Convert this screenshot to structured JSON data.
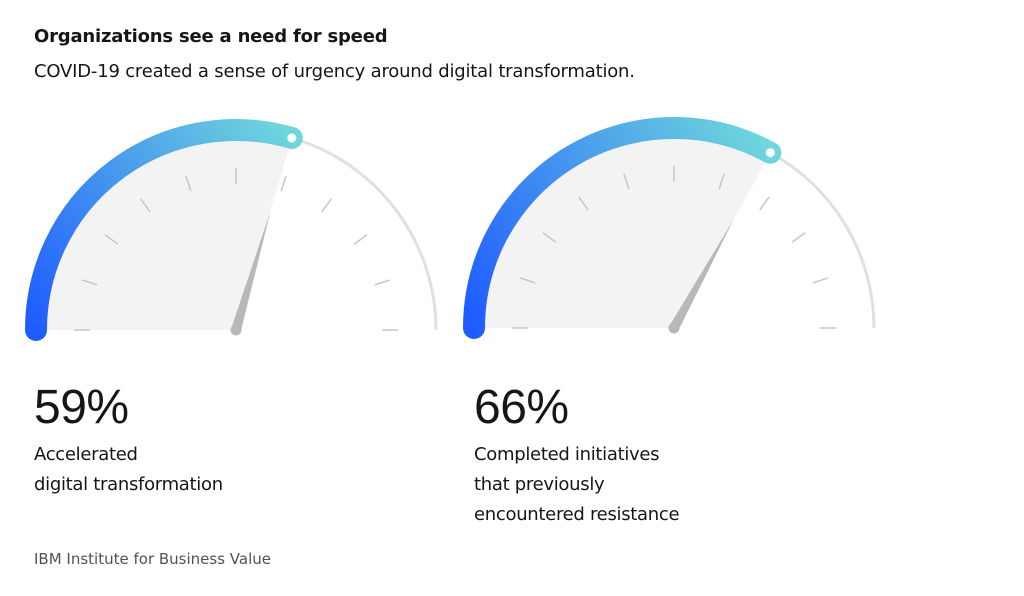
{
  "title": "Organizations see a need for speed",
  "subtitle": "COVID-19 created a sense of urgency around digital transformation.",
  "source": "IBM Institute for Business Value",
  "colors": {
    "gradient_start": "#1F5CFF",
    "gradient_end": "#6FD6DC",
    "track": "#E0E0E0",
    "fill": "#F3F3F3",
    "tick": "#C6C6C6",
    "needle": "#B8B8B8"
  },
  "chart_data": [
    {
      "type": "gauge",
      "value": 59,
      "unit": "%",
      "value_label": "59%",
      "range": [
        0,
        100
      ],
      "label_lines": [
        "Accelerated",
        "digital transformation"
      ]
    },
    {
      "type": "gauge",
      "value": 66,
      "unit": "%",
      "value_label": "66%",
      "range": [
        0,
        100
      ],
      "label_lines": [
        "Completed initiatives",
        "that previously",
        "encountered resistance"
      ]
    }
  ]
}
